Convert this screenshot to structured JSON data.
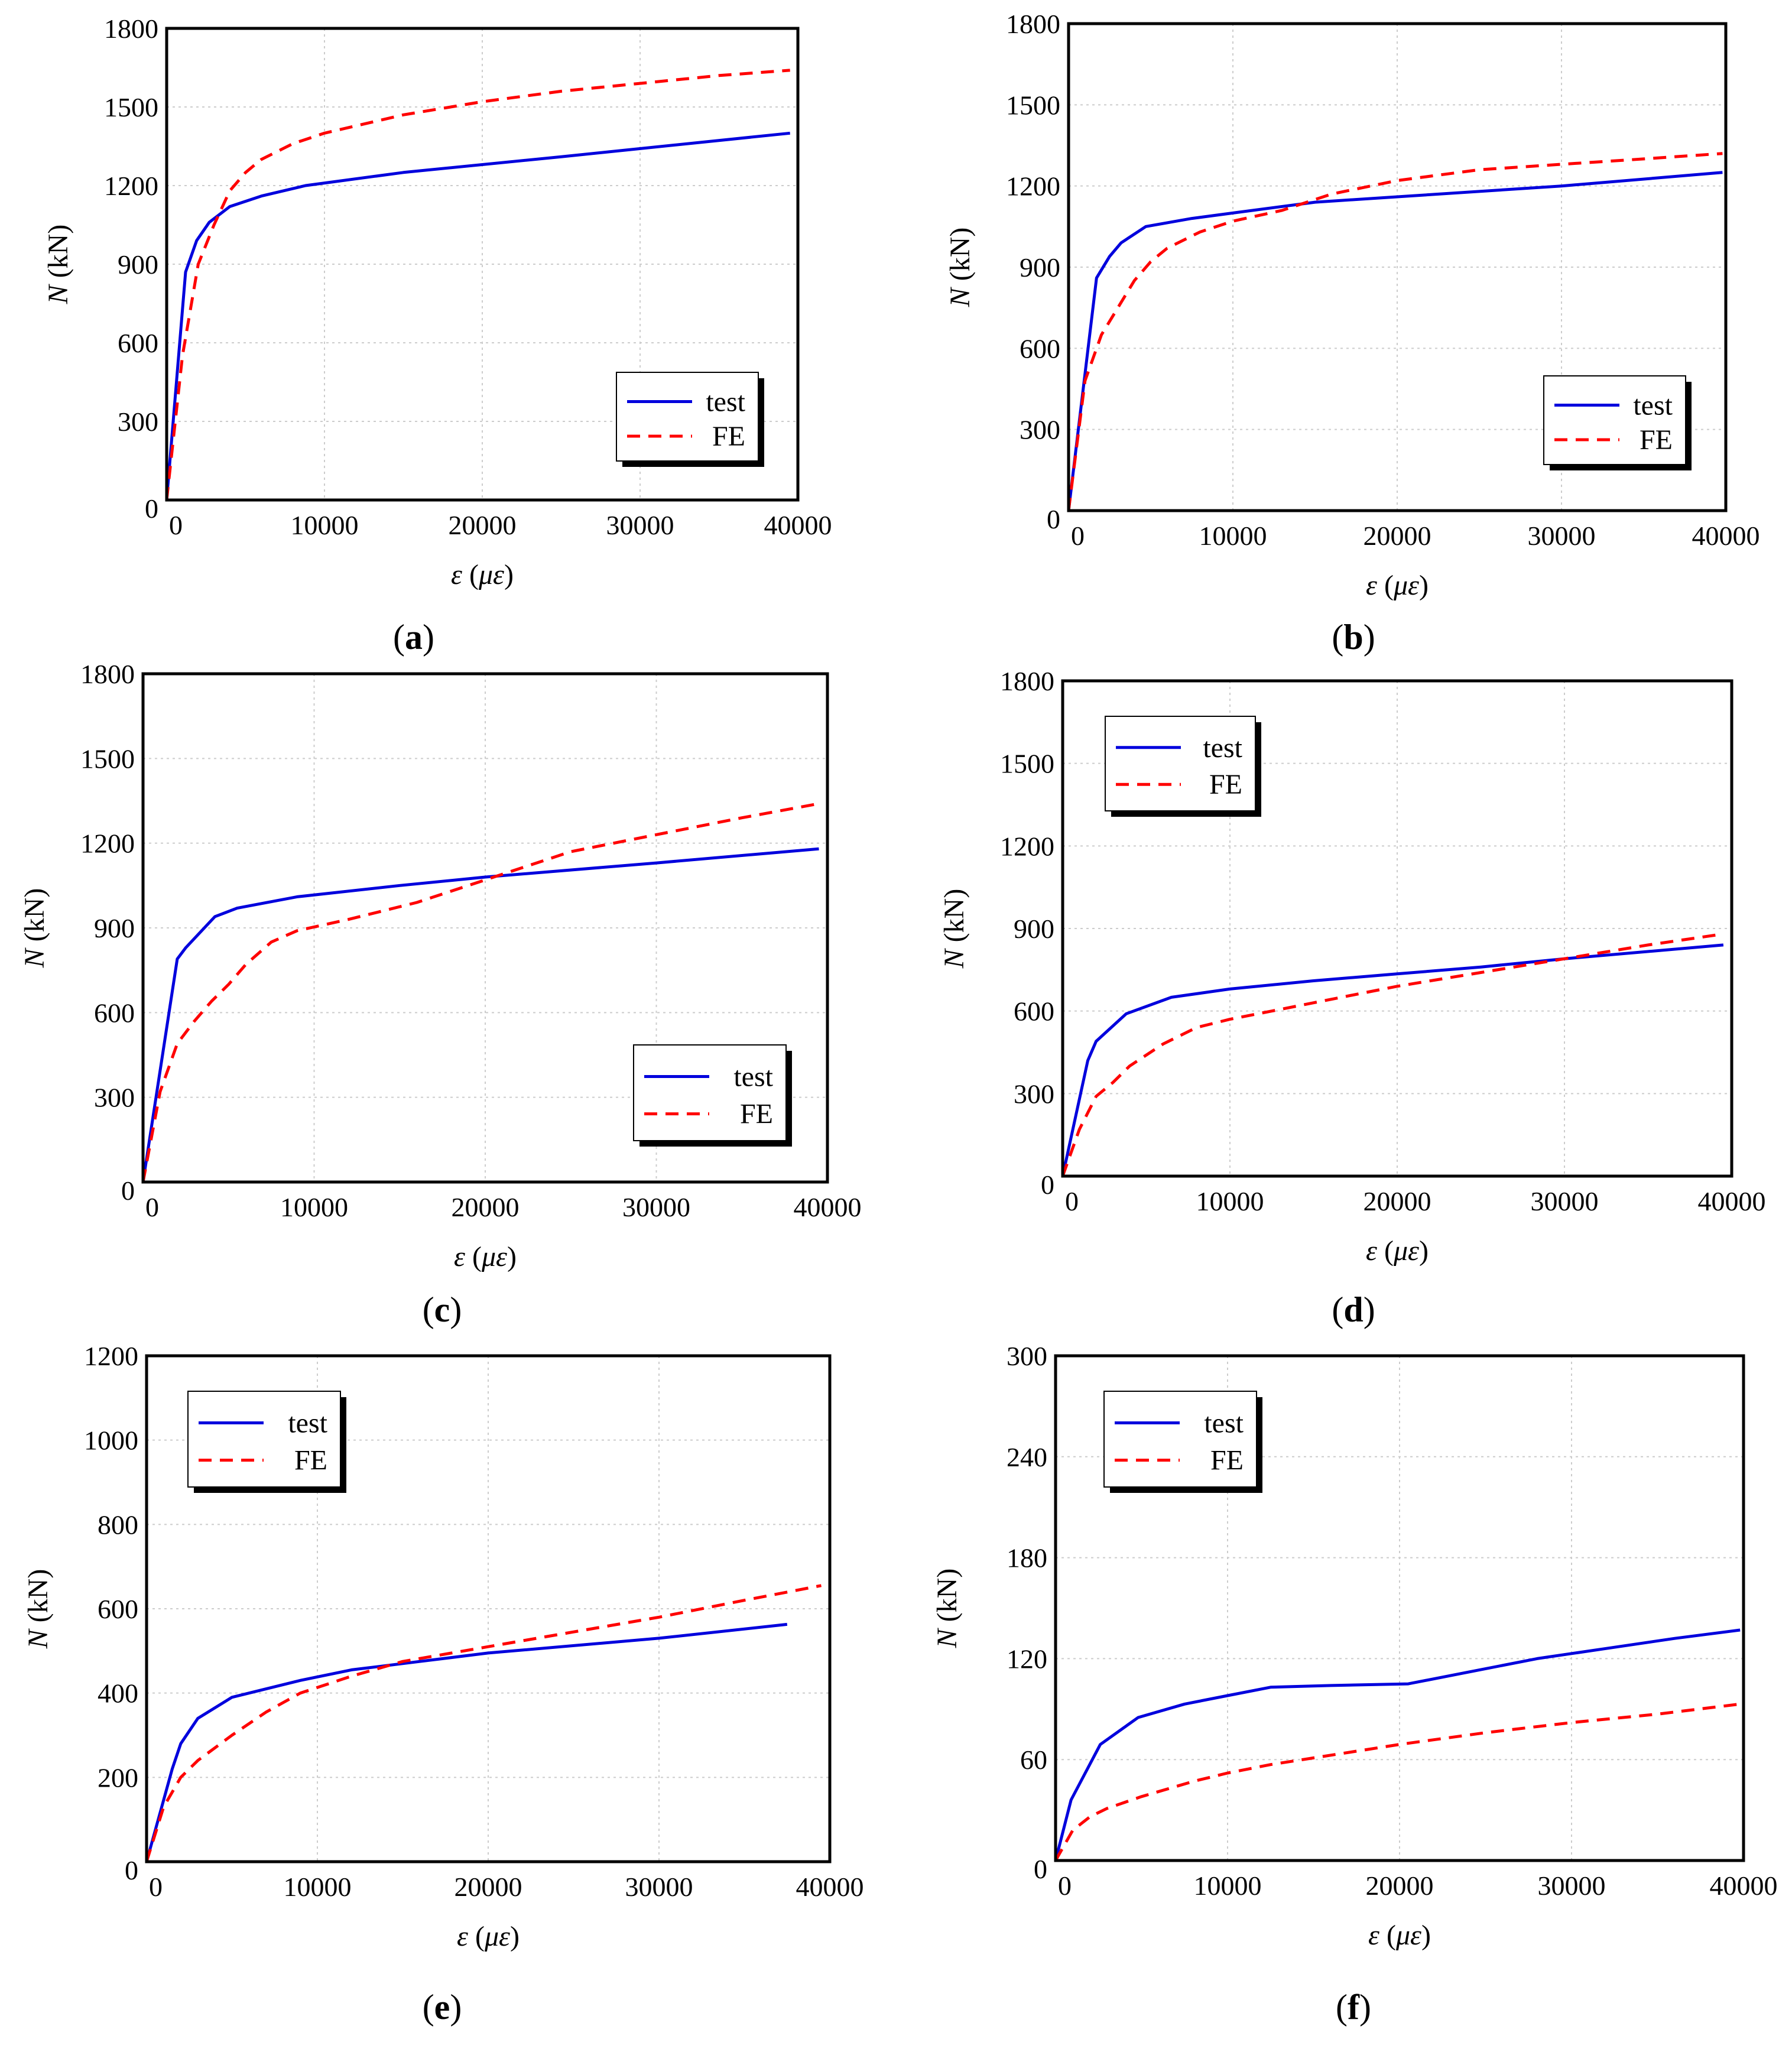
{
  "figure": {
    "legend_labels": {
      "test": "test",
      "fe": "FE"
    },
    "x_axis_symbol": "ε",
    "x_axis_unit": "με",
    "y_axis_symbol": "N",
    "y_axis_unit": "(kN)"
  },
  "colors": {
    "test": "#0000dd",
    "fe": "#ff0000"
  },
  "chart_data": [
    {
      "id": "a",
      "panel_label": "a",
      "type": "line",
      "xlabel": "ε (με)",
      "ylabel": "N (kN)",
      "xlim": [
        0,
        40000
      ],
      "ylim": [
        0,
        1800
      ],
      "xticks": [
        0,
        10000,
        20000,
        30000,
        40000
      ],
      "yticks": [
        0,
        300,
        600,
        900,
        1200,
        1500,
        1800
      ],
      "grid": true,
      "legend_position": "bottom-right",
      "series": [
        {
          "name": "test",
          "x": [
            0,
            1200,
            1900,
            2700,
            4000,
            6000,
            8800,
            15000,
            25000,
            39500
          ],
          "y": [
            0,
            870,
            990,
            1060,
            1120,
            1160,
            1200,
            1250,
            1310,
            1400
          ]
        },
        {
          "name": "FE",
          "x": [
            0,
            1000,
            2000,
            3000,
            4000,
            5000,
            6000,
            8000,
            10000,
            15000,
            20000,
            25000,
            30000,
            35000,
            39500
          ],
          "y": [
            0,
            550,
            900,
            1050,
            1180,
            1250,
            1300,
            1360,
            1400,
            1470,
            1520,
            1560,
            1590,
            1620,
            1640
          ]
        }
      ]
    },
    {
      "id": "b",
      "panel_label": "b",
      "type": "line",
      "xlabel": "ε (με)",
      "ylabel": "N (kN)",
      "xlim": [
        0,
        40000
      ],
      "ylim": [
        0,
        1800
      ],
      "xticks": [
        0,
        10000,
        20000,
        30000,
        40000
      ],
      "yticks": [
        0,
        300,
        600,
        900,
        1200,
        1500,
        1800
      ],
      "grid": true,
      "legend_position": "bottom-right",
      "series": [
        {
          "name": "test",
          "x": [
            0,
            1700,
            2500,
            3200,
            4700,
            7500,
            10000,
            15000,
            20000,
            30000,
            39800
          ],
          "y": [
            0,
            860,
            940,
            990,
            1050,
            1080,
            1100,
            1140,
            1160,
            1200,
            1250
          ]
        },
        {
          "name": "FE",
          "x": [
            0,
            1000,
            2000,
            3000,
            4000,
            5000,
            6000,
            8000,
            10000,
            13000,
            16000,
            20000,
            25000,
            30000,
            35000,
            39800
          ],
          "y": [
            0,
            480,
            650,
            750,
            850,
            920,
            970,
            1030,
            1070,
            1110,
            1170,
            1220,
            1260,
            1280,
            1300,
            1320
          ]
        }
      ]
    },
    {
      "id": "c",
      "panel_label": "c",
      "type": "line",
      "xlabel": "ε (με)",
      "ylabel": "N (kN)",
      "xlim": [
        0,
        40000
      ],
      "ylim": [
        0,
        1800
      ],
      "xticks": [
        0,
        10000,
        20000,
        30000,
        40000
      ],
      "yticks": [
        0,
        300,
        600,
        900,
        1200,
        1500,
        1800
      ],
      "grid": true,
      "legend_position": "bottom-right",
      "series": [
        {
          "name": "test",
          "x": [
            0,
            2000,
            2500,
            4200,
            5500,
            9000,
            15000,
            20000,
            30000,
            39500
          ],
          "y": [
            0,
            790,
            830,
            940,
            970,
            1010,
            1050,
            1080,
            1130,
            1180
          ]
        },
        {
          "name": "FE",
          "x": [
            0,
            1000,
            2000,
            3000,
            4000,
            5000,
            6000,
            7500,
            9000,
            12000,
            16000,
            20000,
            25000,
            30000,
            35000,
            39500
          ],
          "y": [
            0,
            320,
            490,
            570,
            640,
            700,
            770,
            850,
            890,
            930,
            990,
            1070,
            1170,
            1230,
            1290,
            1340
          ]
        }
      ]
    },
    {
      "id": "d",
      "panel_label": "d",
      "type": "line",
      "xlabel": "ε (με)",
      "ylabel": "N (kN)",
      "xlim": [
        0,
        40000
      ],
      "ylim": [
        0,
        1800
      ],
      "xticks": [
        0,
        10000,
        20000,
        30000,
        40000
      ],
      "yticks": [
        0,
        300,
        600,
        900,
        1200,
        1500,
        1800
      ],
      "grid": true,
      "legend_position": "top-left",
      "series": [
        {
          "name": "test",
          "x": [
            0,
            1500,
            2000,
            3800,
            6500,
            10000,
            15000,
            20000,
            25000,
            30000,
            39500
          ],
          "y": [
            0,
            420,
            490,
            590,
            650,
            680,
            710,
            735,
            760,
            790,
            840
          ]
        },
        {
          "name": "FE",
          "x": [
            0,
            1000,
            2000,
            3000,
            4000,
            6000,
            8000,
            10000,
            12500,
            15000,
            20000,
            25000,
            30000,
            35000,
            39500
          ],
          "y": [
            0,
            170,
            290,
            340,
            400,
            480,
            540,
            570,
            600,
            630,
            690,
            740,
            790,
            840,
            880
          ]
        }
      ]
    },
    {
      "id": "e",
      "panel_label": "e",
      "type": "line",
      "xlabel": "ε (με)",
      "ylabel": "N (kN)",
      "xlim": [
        0,
        40000
      ],
      "ylim": [
        0,
        1200
      ],
      "xticks": [
        0,
        10000,
        20000,
        30000,
        40000
      ],
      "yticks": [
        0,
        200,
        400,
        600,
        800,
        1000,
        1200
      ],
      "grid": true,
      "legend_position": "top-left",
      "series": [
        {
          "name": "test",
          "x": [
            0,
            1500,
            2000,
            3000,
            5000,
            9000,
            12000,
            16000,
            20000,
            30000,
            37500
          ],
          "y": [
            0,
            220,
            280,
            340,
            390,
            430,
            455,
            475,
            495,
            530,
            563
          ]
        },
        {
          "name": "FE",
          "x": [
            0,
            1000,
            2000,
            3000,
            5000,
            7000,
            9000,
            12000,
            15000,
            20000,
            25000,
            30000,
            35000,
            39500
          ],
          "y": [
            0,
            130,
            200,
            240,
            300,
            355,
            400,
            440,
            475,
            510,
            545,
            580,
            620,
            655
          ]
        }
      ]
    },
    {
      "id": "f",
      "panel_label": "f",
      "type": "line",
      "xlabel": "ε (με)",
      "ylabel": "N (kN)",
      "xlim": [
        0,
        40000
      ],
      "ylim": [
        0,
        300
      ],
      "xticks": [
        0,
        10000,
        20000,
        30000,
        40000
      ],
      "yticks": [
        0,
        60,
        120,
        180,
        240,
        300
      ],
      "grid": true,
      "legend_position": "top-left",
      "series": [
        {
          "name": "test",
          "x": [
            0,
            900,
            2600,
            4800,
            7500,
            10000,
            12500,
            16000,
            20500,
            24000,
            28000,
            32000,
            36000,
            39800
          ],
          "y": [
            0,
            36,
            69,
            85,
            93,
            98,
            103,
            104,
            105,
            112,
            120,
            126,
            132,
            137
          ]
        },
        {
          "name": "FE",
          "x": [
            0,
            1000,
            2000,
            3000,
            5000,
            8000,
            10000,
            12500,
            15000,
            20000,
            25000,
            30000,
            35000,
            39800
          ],
          "y": [
            0,
            18,
            26,
            31,
            38,
            47,
            52,
            57,
            61,
            69,
            76,
            82,
            87,
            93
          ]
        }
      ]
    }
  ]
}
